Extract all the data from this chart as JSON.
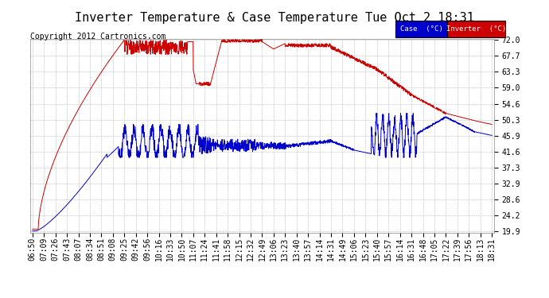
{
  "title": "Inverter Temperature & Case Temperature Tue Oct 2 18:31",
  "copyright": "Copyright 2012 Cartronics.com",
  "background_color": "#ffffff",
  "plot_bg_color": "#ffffff",
  "grid_color": "#bbbbbb",
  "y_ticks": [
    19.9,
    24.2,
    28.6,
    32.9,
    37.3,
    41.6,
    45.9,
    50.3,
    54.6,
    59.0,
    63.3,
    67.7,
    72.0
  ],
  "x_labels": [
    "06:50",
    "07:09",
    "07:26",
    "07:43",
    "08:07",
    "08:34",
    "08:51",
    "09:08",
    "09:25",
    "09:42",
    "09:56",
    "10:16",
    "10:33",
    "10:50",
    "11:07",
    "11:24",
    "11:41",
    "11:58",
    "12:15",
    "12:32",
    "12:49",
    "13:06",
    "13:23",
    "13:40",
    "13:57",
    "14:14",
    "14:31",
    "14:49",
    "15:06",
    "15:23",
    "15:40",
    "15:57",
    "16:14",
    "16:31",
    "16:48",
    "17:05",
    "17:22",
    "17:39",
    "17:56",
    "18:13",
    "18:31"
  ],
  "case_color": "#0000cc",
  "inverter_color": "#cc0000",
  "ylim_min": 19.9,
  "ylim_max": 72.0,
  "title_fontsize": 11,
  "copyright_fontsize": 7,
  "tick_fontsize": 7
}
